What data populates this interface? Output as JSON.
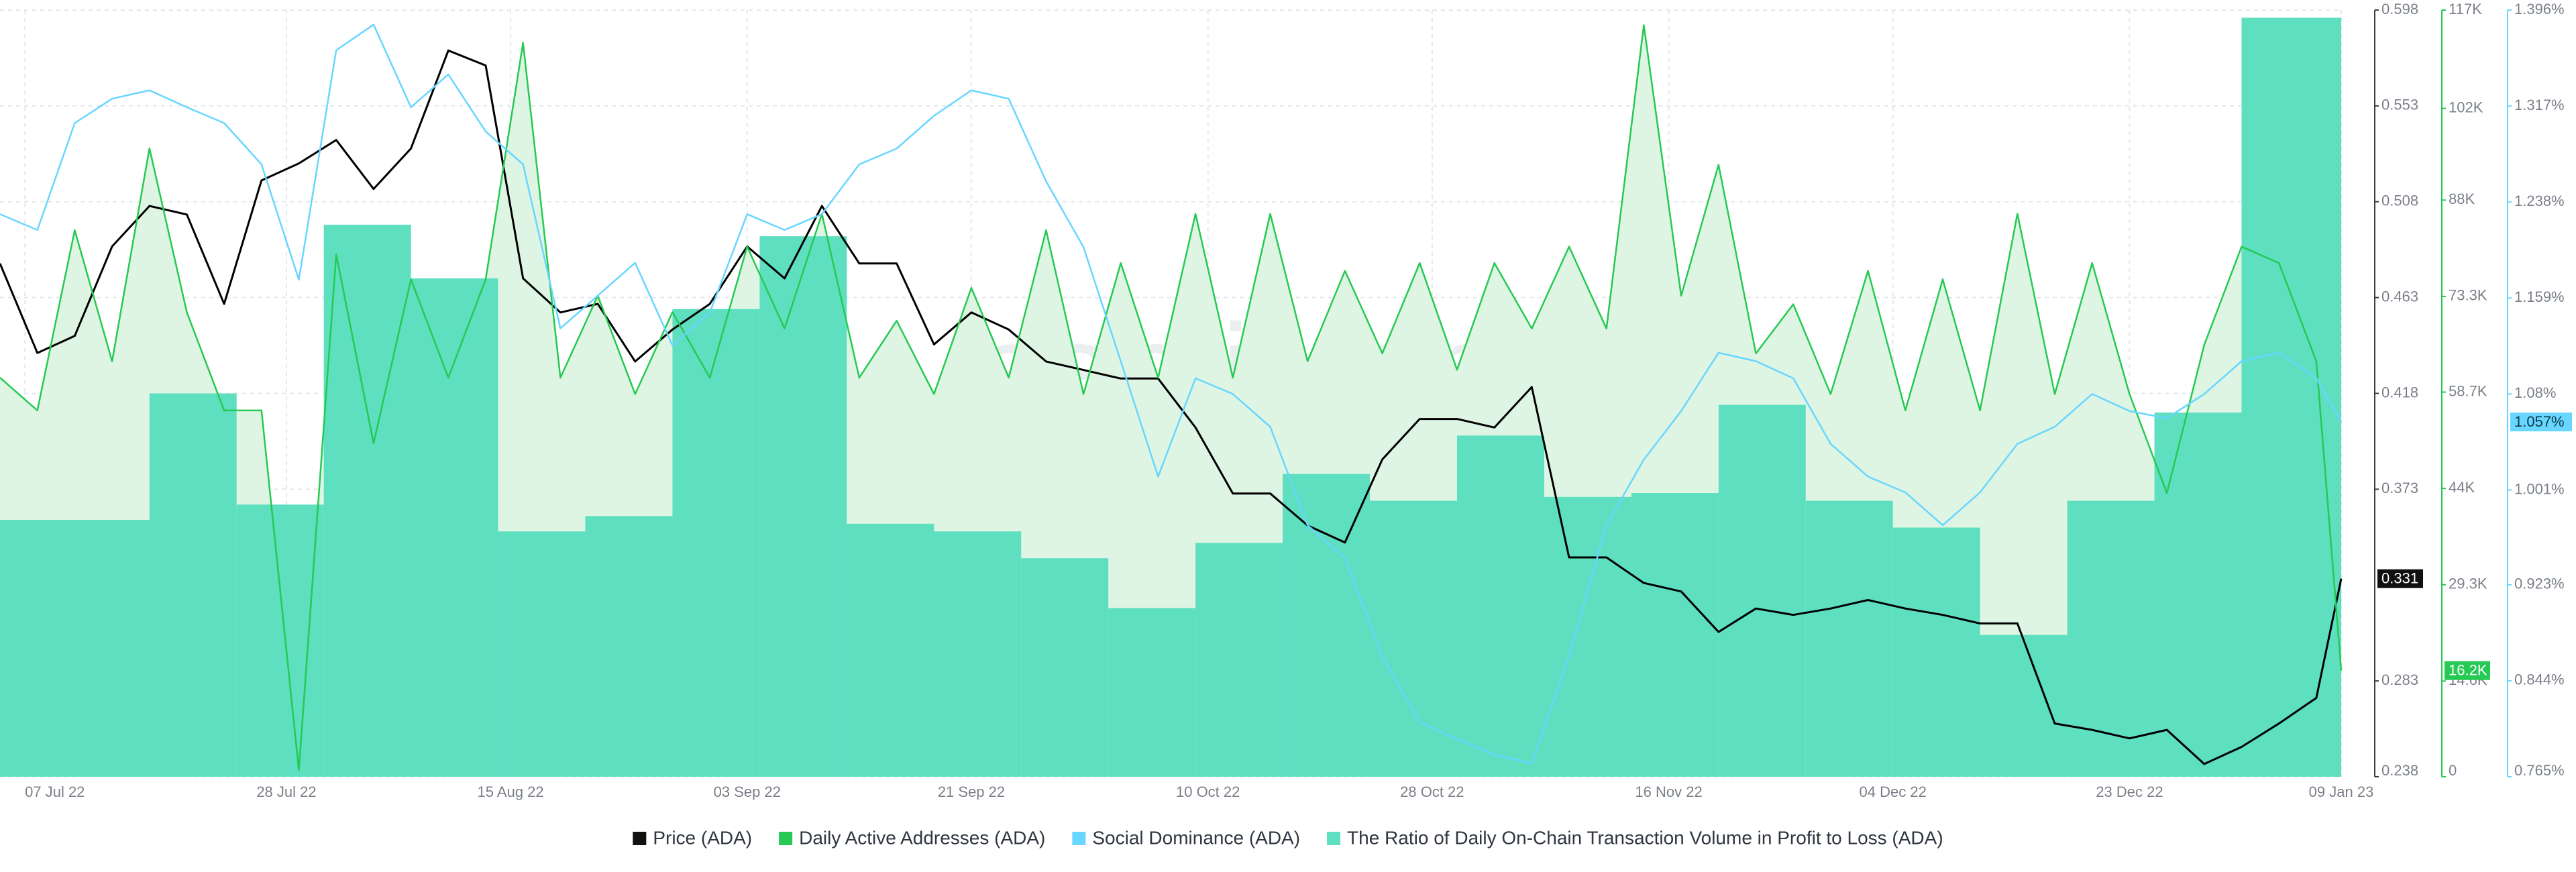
{
  "chart_data": {
    "type": "line",
    "watermark": "santiment.",
    "x": [
      "2022-07-05",
      "2022-07-08",
      "2022-07-11",
      "2022-07-14",
      "2022-07-17",
      "2022-07-20",
      "2022-07-23",
      "2022-07-26",
      "2022-07-29",
      "2022-08-01",
      "2022-08-04",
      "2022-08-07",
      "2022-08-10",
      "2022-08-13",
      "2022-08-16",
      "2022-08-19",
      "2022-08-22",
      "2022-08-25",
      "2022-08-28",
      "2022-08-31",
      "2022-09-03",
      "2022-09-06",
      "2022-09-09",
      "2022-09-12",
      "2022-09-15",
      "2022-09-18",
      "2022-09-21",
      "2022-09-24",
      "2022-09-27",
      "2022-09-30",
      "2022-10-03",
      "2022-10-06",
      "2022-10-09",
      "2022-10-12",
      "2022-10-15",
      "2022-10-18",
      "2022-10-21",
      "2022-10-24",
      "2022-10-27",
      "2022-10-30",
      "2022-11-02",
      "2022-11-05",
      "2022-11-08",
      "2022-11-11",
      "2022-11-14",
      "2022-11-17",
      "2022-11-20",
      "2022-11-23",
      "2022-11-26",
      "2022-11-29",
      "2022-12-02",
      "2022-12-05",
      "2022-12-08",
      "2022-12-11",
      "2022-12-14",
      "2022-12-17",
      "2022-12-20",
      "2022-12-23",
      "2022-12-26",
      "2022-12-29",
      "2023-01-01",
      "2023-01-04",
      "2023-01-07",
      "2023-01-09"
    ],
    "xlim": [
      "2022-07-05",
      "2023-01-09"
    ],
    "xticks": [
      {
        "value": "2022-07-07",
        "label": "07 Jul 22"
      },
      {
        "value": "2022-07-28",
        "label": "28 Jul 22"
      },
      {
        "value": "2022-08-15",
        "label": "15 Aug 22"
      },
      {
        "value": "2022-09-03",
        "label": "03 Sep 22"
      },
      {
        "value": "2022-09-21",
        "label": "21 Sep 22"
      },
      {
        "value": "2022-10-10",
        "label": "10 Oct 22"
      },
      {
        "value": "2022-10-28",
        "label": "28 Oct 22"
      },
      {
        "value": "2022-11-16",
        "label": "16 Nov 22"
      },
      {
        "value": "2022-12-04",
        "label": "04 Dec 22"
      },
      {
        "value": "2022-12-23",
        "label": "23 Dec 22"
      },
      {
        "value": "2023-01-09",
        "label": "09 Jan 23"
      }
    ],
    "ylim": [
      0.238,
      0.598
    ],
    "yticks": [
      0.238,
      0.283,
      0.373,
      0.418,
      0.463,
      0.508,
      0.553,
      0.598
    ],
    "y2lim": [
      0,
      117000
    ],
    "y2ticks": [
      {
        "value": 0,
        "label": "0"
      },
      {
        "value": 14600,
        "label": "14.6K"
      },
      {
        "value": 29300,
        "label": "29.3K"
      },
      {
        "value": 44000,
        "label": "44K"
      },
      {
        "value": 58700,
        "label": "58.7K"
      },
      {
        "value": 73300,
        "label": "73.3K"
      },
      {
        "value": 88000,
        "label": "88K"
      },
      {
        "value": 102000,
        "label": "102K"
      },
      {
        "value": 117000,
        "label": "117K"
      }
    ],
    "y3lim": [
      0.765,
      1.396
    ],
    "y3ticks": [
      {
        "value": 0.765,
        "label": "0.765%"
      },
      {
        "value": 0.844,
        "label": "0.844%"
      },
      {
        "value": 0.923,
        "label": "0.923%"
      },
      {
        "value": 1.001,
        "label": "1.001%"
      },
      {
        "value": 1.08,
        "label": "1.08%"
      },
      {
        "value": 1.159,
        "label": "1.159%"
      },
      {
        "value": 1.238,
        "label": "1.238%"
      },
      {
        "value": 1.317,
        "label": "1.317%"
      },
      {
        "value": 1.396,
        "label": "1.396%"
      }
    ],
    "y4lim": [
      0,
      2
    ],
    "grid": true,
    "legend": "bottom",
    "series": [
      {
        "name": "Price (ADA)",
        "type": "line",
        "color": "#000000",
        "axis": "y",
        "values": [
          0.479,
          0.437,
          0.445,
          0.487,
          0.506,
          0.502,
          0.46,
          0.518,
          0.526,
          0.537,
          0.514,
          0.533,
          0.579,
          0.572,
          0.472,
          0.456,
          0.46,
          0.433,
          0.448,
          0.46,
          0.487,
          0.472,
          0.506,
          0.479,
          0.479,
          0.441,
          0.456,
          0.448,
          0.433,
          0.429,
          0.425,
          0.425,
          0.402,
          0.371,
          0.371,
          0.356,
          0.348,
          0.387,
          0.406,
          0.406,
          0.402,
          0.421,
          0.341,
          0.341,
          0.329,
          0.325,
          0.306,
          0.317,
          0.314,
          0.317,
          0.321,
          0.317,
          0.314,
          0.31,
          0.31,
          0.263,
          0.26,
          0.256,
          0.26,
          0.244,
          0.252,
          0.263,
          0.275,
          0.331
        ]
      },
      {
        "name": "Daily Active Addresses (ADA)",
        "type": "area",
        "color": "#26c953",
        "fill": "#dff5e4",
        "axis": "y2",
        "last_label": "16.2K",
        "values": [
          60900,
          55900,
          83400,
          63400,
          95900,
          70900,
          55900,
          55900,
          1000,
          79700,
          50900,
          75900,
          60900,
          75900,
          112000,
          60900,
          73400,
          58400,
          70900,
          60900,
          80900,
          68400,
          85900,
          60900,
          69600,
          58400,
          74600,
          60900,
          83400,
          58400,
          78400,
          60900,
          85900,
          60900,
          85900,
          63400,
          77200,
          64600,
          78400,
          62100,
          78400,
          68400,
          80900,
          68400,
          114700,
          73400,
          93400,
          64600,
          72100,
          58400,
          77200,
          55900,
          75900,
          55900,
          85900,
          58400,
          78400,
          58400,
          43300,
          65900,
          80900,
          78400,
          63400,
          16200
        ]
      },
      {
        "name": "Social Dominance (ADA)",
        "type": "line",
        "color": "#68d6ff",
        "axis": "y3",
        "last_label": "1.057%",
        "values": [
          1.228,
          1.215,
          1.303,
          1.323,
          1.33,
          1.316,
          1.303,
          1.269,
          1.174,
          1.363,
          1.384,
          1.316,
          1.343,
          1.296,
          1.269,
          1.134,
          1.161,
          1.188,
          1.12,
          1.147,
          1.228,
          1.215,
          1.228,
          1.269,
          1.282,
          1.309,
          1.33,
          1.323,
          1.255,
          1.201,
          1.107,
          1.012,
          1.093,
          1.08,
          1.053,
          0.972,
          0.945,
          0.864,
          0.81,
          0.796,
          0.783,
          0.776,
          0.864,
          0.972,
          1.026,
          1.066,
          1.114,
          1.107,
          1.093,
          1.039,
          1.012,
          0.999,
          0.972,
          0.999,
          1.039,
          1.053,
          1.08,
          1.066,
          1.06,
          1.08,
          1.107,
          1.114,
          1.093,
          1.057
        ]
      },
      {
        "name": "The Ratio of Daily On-Chain Transaction Volume in Profit to Loss (ADA)",
        "type": "step-bar",
        "color": "#5ddfc0",
        "axis": "y4",
        "x": [
          "2022-07-05",
          "2022-07-17",
          "2022-07-24",
          "2022-07-31",
          "2022-08-07",
          "2022-08-14",
          "2022-08-21",
          "2022-08-28",
          "2022-09-04",
          "2022-09-11",
          "2022-09-18",
          "2022-09-25",
          "2022-10-02",
          "2022-10-09",
          "2022-10-16",
          "2022-10-23",
          "2022-10-30",
          "2022-11-06",
          "2022-11-13",
          "2022-11-20",
          "2022-11-27",
          "2022-12-04",
          "2022-12-11",
          "2022-12-18",
          "2022-12-25",
          "2023-01-01"
        ],
        "values": [
          0.67,
          1.0,
          0.71,
          1.44,
          1.3,
          0.64,
          0.68,
          1.22,
          1.41,
          0.66,
          0.64,
          0.57,
          0.44,
          0.61,
          0.79,
          0.72,
          0.89,
          0.73,
          0.74,
          0.97,
          0.72,
          0.65,
          0.37,
          0.72,
          0.95,
          1.98
        ]
      }
    ]
  }
}
